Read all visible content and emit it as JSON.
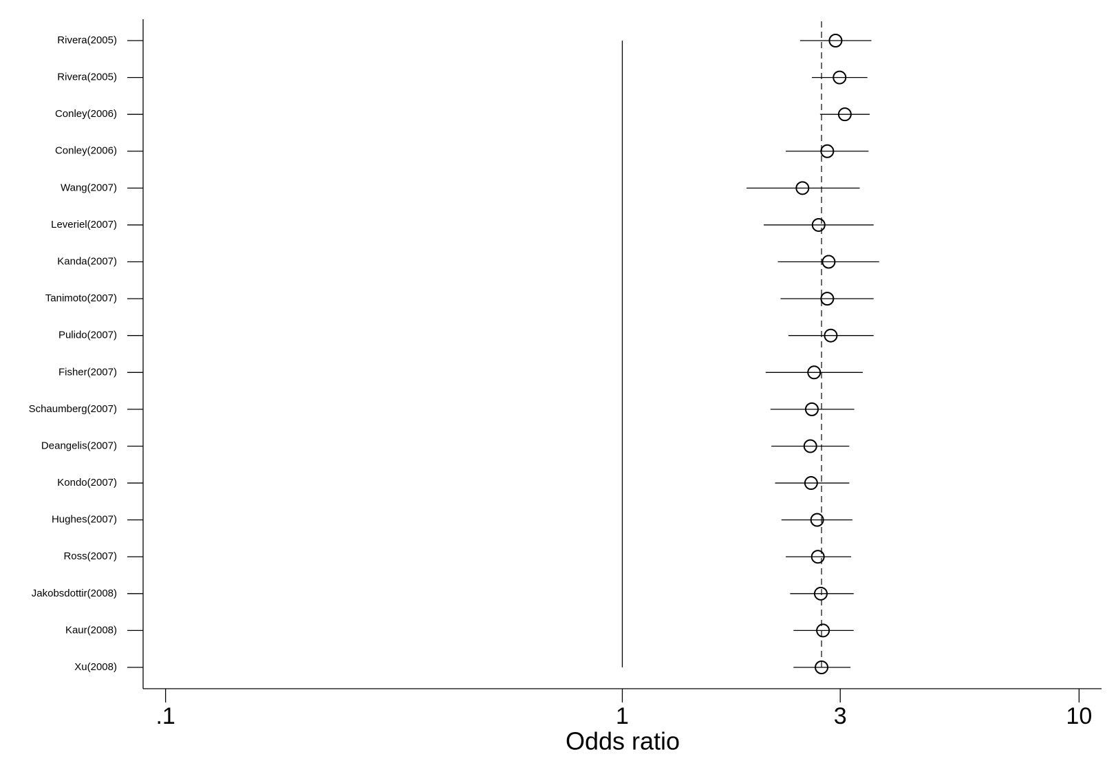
{
  "chart_data": {
    "type": "forest",
    "x_label": "Odds ratio",
    "x_scale": "log",
    "xlim": [
      0.0893,
      11.2
    ],
    "xticks": [
      {
        "value": 0.1,
        "label": ".1"
      },
      1,
      3,
      10
    ],
    "reference": 1,
    "pooled": 2.73,
    "color": "#000000",
    "categories": [
      "Rivera(2005)",
      "Rivera(2005)",
      "Conley(2006)",
      "Conley(2006)",
      "Wang(2007)",
      "Leveriel(2007)",
      "Kanda(2007)",
      "Tanimoto(2007)",
      "Pulido(2007)",
      "Fisher(2007)",
      "Schaumberg(2007)",
      "Deangelis(2007)",
      "Kondo(2007)",
      "Hughes(2007)",
      "Ross(2007)",
      "Jakobsdottir(2008)",
      "Kaur(2008)",
      "Xu(2008)"
    ],
    "values": [
      2.93,
      2.99,
      3.07,
      2.81,
      2.48,
      2.69,
      2.83,
      2.81,
      2.86,
      2.63,
      2.6,
      2.58,
      2.59,
      2.67,
      2.68,
      2.72,
      2.75,
      2.73
    ],
    "lower": [
      2.45,
      2.6,
      2.71,
      2.28,
      1.87,
      2.04,
      2.19,
      2.22,
      2.31,
      2.06,
      2.11,
      2.12,
      2.16,
      2.23,
      2.28,
      2.33,
      2.37,
      2.37
    ],
    "upper": [
      3.51,
      3.44,
      3.48,
      3.46,
      3.31,
      3.55,
      3.65,
      3.55,
      3.55,
      3.36,
      3.22,
      3.14,
      3.14,
      3.19,
      3.17,
      3.21,
      3.21,
      3.16
    ]
  }
}
